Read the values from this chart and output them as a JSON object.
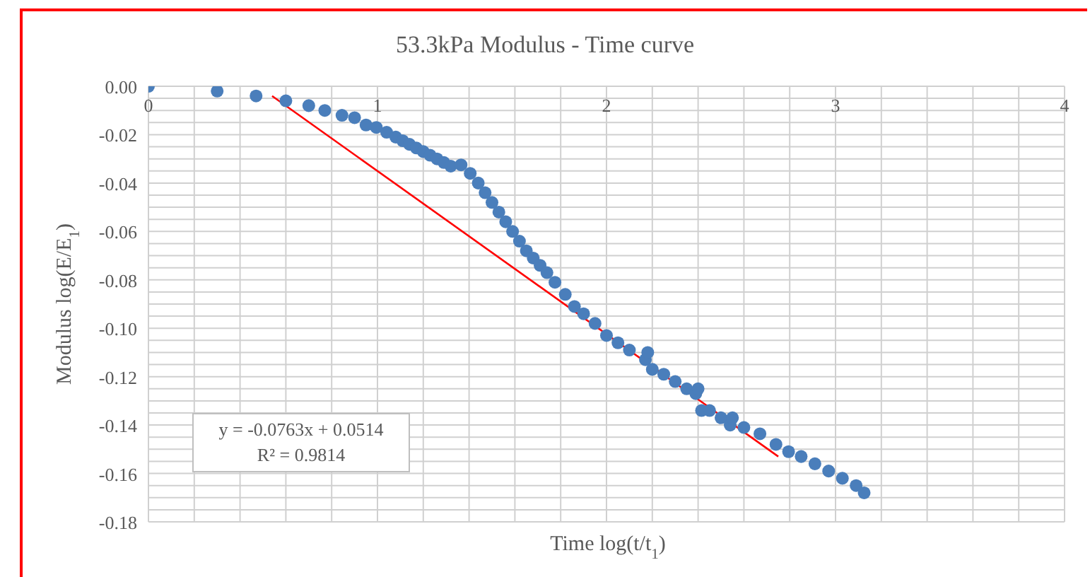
{
  "chart_data": {
    "type": "scatter",
    "title": "53.3kPa  Modulus - Time curve",
    "xlabel": "Time log(t/t$_{1}$)",
    "ylabel": "Modulus log(E/E$_{1}$)",
    "annotations": [
      "y = -0.0763x + 0.0514",
      "R² = 0.9814"
    ],
    "xlim": [
      0,
      4
    ],
    "xticks": [
      0,
      {
        "value": 0.2,
        "label": null
      },
      {
        "value": 0.4,
        "label": null
      },
      {
        "value": 0.6,
        "label": null
      },
      {
        "value": 0.8,
        "label": null
      },
      1,
      {
        "value": 1.2,
        "label": null
      },
      {
        "value": 1.4,
        "label": null
      },
      {
        "value": 1.6,
        "label": null
      },
      {
        "value": 1.8,
        "label": null
      },
      2,
      {
        "value": 2.2,
        "label": null
      },
      {
        "value": 2.4,
        "label": null
      },
      {
        "value": 2.6,
        "label": null
      },
      {
        "value": 2.8,
        "label": null
      },
      3,
      {
        "value": 3.2,
        "label": null
      },
      {
        "value": 3.4,
        "label": null
      },
      {
        "value": 3.6,
        "label": null
      },
      {
        "value": 3.8,
        "label": null
      },
      4
    ],
    "ylim": [
      -0.18,
      0
    ],
    "yticks": [
      {
        "value": 0,
        "label": "0.00"
      },
      {
        "value": -0.005,
        "label": null
      },
      {
        "value": -0.01,
        "label": null
      },
      {
        "value": -0.015,
        "label": null
      },
      {
        "value": -0.02,
        "label": "-0.02"
      },
      {
        "value": -0.025,
        "label": null
      },
      {
        "value": -0.03,
        "label": null
      },
      {
        "value": -0.035,
        "label": null
      },
      {
        "value": -0.04,
        "label": "-0.04"
      },
      {
        "value": -0.045,
        "label": null
      },
      {
        "value": -0.05,
        "label": null
      },
      {
        "value": -0.055,
        "label": null
      },
      {
        "value": -0.06,
        "label": "-0.06"
      },
      {
        "value": -0.065,
        "label": null
      },
      {
        "value": -0.07,
        "label": null
      },
      {
        "value": -0.075,
        "label": null
      },
      {
        "value": -0.08,
        "label": "-0.08"
      },
      {
        "value": -0.085,
        "label": null
      },
      {
        "value": -0.09,
        "label": null
      },
      {
        "value": -0.095,
        "label": null
      },
      {
        "value": -0.1,
        "label": "-0.10"
      },
      {
        "value": -0.105,
        "label": null
      },
      {
        "value": -0.11,
        "label": null
      },
      {
        "value": -0.115,
        "label": null
      },
      {
        "value": -0.12,
        "label": "-0.12"
      },
      {
        "value": -0.125,
        "label": null
      },
      {
        "value": -0.13,
        "label": null
      },
      {
        "value": -0.135,
        "label": null
      },
      {
        "value": -0.14,
        "label": "-0.14"
      },
      {
        "value": -0.145,
        "label": null
      },
      {
        "value": -0.15,
        "label": null
      },
      {
        "value": -0.155,
        "label": null
      },
      {
        "value": -0.16,
        "label": "-0.16"
      },
      {
        "value": -0.165,
        "label": null
      },
      {
        "value": -0.17,
        "label": null
      },
      {
        "value": -0.175,
        "label": null
      },
      {
        "value": -0.18,
        "label": "-0.18"
      }
    ],
    "grid": true,
    "legend": false,
    "series": [
      {
        "type": "scatter",
        "marker": "circle",
        "color": "#4a7ebb",
        "x": [
          0,
          0.3,
          0.47,
          0.6,
          0.7,
          0.77,
          0.845,
          0.9,
          0.95,
          0.995,
          1.04,
          1.08,
          1.11,
          1.14,
          1.17,
          1.2,
          1.23,
          1.26,
          1.29,
          1.32,
          1.365,
          1.405,
          1.44,
          1.47,
          1.5,
          1.53,
          1.56,
          1.59,
          1.62,
          1.65,
          1.68,
          1.71,
          1.74,
          1.775,
          1.82,
          1.86,
          1.9,
          1.95,
          2,
          2.05,
          2.1,
          2.17,
          2.18,
          2.2,
          2.25,
          2.3,
          2.35,
          2.39,
          2.4,
          2.415,
          2.45,
          2.5,
          2.54,
          2.55,
          2.6,
          2.67,
          2.74,
          2.795,
          2.85,
          2.91,
          2.97,
          3.03,
          3.09,
          3.125
        ],
        "values": [
          0,
          -0.002,
          -0.004,
          -0.006,
          -0.008,
          -0.01,
          -0.012,
          -0.013,
          -0.016,
          -0.017,
          -0.019,
          -0.021,
          -0.0225,
          -0.024,
          -0.0255,
          -0.027,
          -0.0285,
          -0.03,
          -0.0315,
          -0.033,
          -0.0325,
          -0.036,
          -0.04,
          -0.044,
          -0.048,
          -0.052,
          -0.056,
          -0.06,
          -0.064,
          -0.068,
          -0.071,
          -0.074,
          -0.077,
          -0.081,
          -0.086,
          -0.091,
          -0.094,
          -0.098,
          -0.103,
          -0.106,
          -0.109,
          -0.113,
          -0.11,
          -0.117,
          -0.119,
          -0.122,
          -0.125,
          -0.127,
          -0.125,
          -0.134,
          -0.134,
          -0.137,
          -0.14,
          -0.137,
          -0.141,
          -0.1436,
          -0.148,
          -0.151,
          -0.153,
          -0.156,
          -0.159,
          -0.162,
          -0.165,
          -0.168
        ]
      },
      {
        "type": "line",
        "marker": "none",
        "color": "#ff0000",
        "x": [
          0.54,
          2.75
        ],
        "values": [
          -0.004,
          -0.153
        ]
      }
    ]
  }
}
